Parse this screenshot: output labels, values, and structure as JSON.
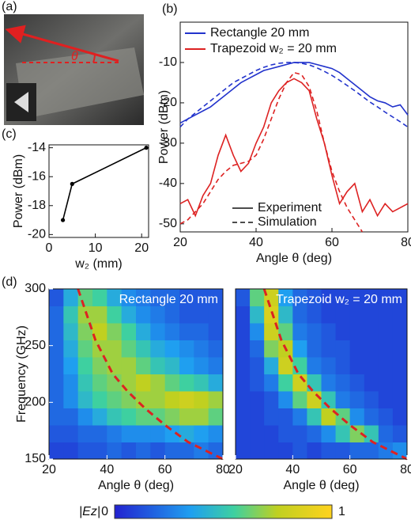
{
  "chart_data": [
    {
      "type": "image",
      "label": "(a)",
      "annotation": "θ"
    },
    {
      "type": "line",
      "label": "(b)",
      "xlabel": "Angle θ (deg)",
      "ylabel": "Power (dBm)",
      "xlim": [
        20,
        80
      ],
      "xticks": [
        20,
        40,
        60,
        80
      ],
      "ylim": [
        -52,
        0
      ],
      "yticks": [
        -10,
        -20,
        -30,
        -40,
        -50
      ],
      "x": [
        20,
        22,
        24,
        26,
        28,
        30,
        32,
        34,
        36,
        38,
        40,
        42,
        44,
        46,
        48,
        50,
        52,
        54,
        56,
        58,
        60,
        62,
        64,
        66,
        68,
        70,
        72,
        74,
        76,
        78,
        80
      ],
      "series": [
        {
          "name": "Rectangle 20 mm",
          "color": "#2233cc",
          "values": [
            -25,
            -24,
            -23,
            -22,
            -21,
            -19.5,
            -18,
            -16.5,
            -15,
            -14,
            -13,
            -12,
            -11.5,
            -11,
            -10.5,
            -10,
            -10,
            -10,
            -10.5,
            -11,
            -11.5,
            -12.5,
            -14,
            -15.5,
            -17,
            -18.5,
            -19.5,
            -20,
            -21,
            -20.5,
            -23
          ],
          "simulation": [
            -26,
            -24,
            -22.5,
            -21,
            -19.5,
            -18,
            -16.5,
            -15,
            -14,
            -13,
            -12,
            -11.2,
            -10.6,
            -10.2,
            -10,
            -10,
            -10.2,
            -10.6,
            -11.3,
            -12.2,
            -13.2,
            -14.4,
            -15.7,
            -17,
            -18.4,
            -19.8,
            -21,
            -22.3,
            -23.5,
            -24.7,
            -26
          ]
        },
        {
          "name": "Trapezoid w₂ = 20 mm",
          "color": "#dd2222",
          "values": [
            -45,
            -44,
            -48,
            -43,
            -40,
            -33,
            -28,
            -33,
            -37,
            -35,
            -30,
            -26,
            -20,
            -17,
            -15,
            -14,
            -15,
            -17,
            -24,
            -30,
            -38,
            -45,
            -42,
            -40,
            -47,
            -44,
            -48,
            -45,
            -47,
            -46,
            -45
          ],
          "simulation": [
            -50,
            -49,
            -47,
            -45,
            -42,
            -39,
            -37,
            -35.5,
            -35,
            -34.5,
            -33,
            -29,
            -24,
            -19,
            -15,
            -12.5,
            -13,
            -16,
            -22,
            -30,
            -37,
            -42,
            -46,
            -49,
            -52,
            null,
            null,
            null,
            null,
            null,
            null
          ]
        }
      ],
      "legend_styles": [
        "Experiment",
        "Simulation"
      ]
    },
    {
      "type": "line",
      "label": "(c)",
      "xlabel": "w₂ (mm)",
      "ylabel": "Power (dBm)",
      "color": "#000000",
      "xlim": [
        0,
        21.5
      ],
      "xticks": [
        0,
        10,
        20
      ],
      "ylim": [
        -20.2,
        -13.8
      ],
      "yticks": [
        -14,
        -16,
        -18,
        -20
      ],
      "x": [
        3,
        5,
        21
      ],
      "values": [
        -19,
        -16.5,
        -14
      ]
    },
    {
      "type": "heatmap",
      "label": "(d)",
      "title": "Rectangle 20 mm",
      "xlabel": "Angle θ (deg)",
      "ylabel": "Frequency (GHz)",
      "xlim": [
        20,
        80
      ],
      "xticks": [
        20,
        40,
        60,
        80
      ],
      "ylim": [
        150,
        300
      ],
      "yticks": [
        150,
        200,
        250,
        300
      ],
      "xbins": [
        20,
        25,
        30,
        35,
        40,
        45,
        50,
        55,
        60,
        65,
        70,
        75,
        80
      ],
      "ybins": [
        150,
        165,
        180,
        195,
        210,
        225,
        240,
        255,
        270,
        285,
        300
      ],
      "values": [
        [
          0.1,
          0.1,
          0.15,
          0.15,
          0.2,
          0.15,
          0.2,
          0.15,
          0.2,
          0.2,
          0.25,
          0.2
        ],
        [
          0.15,
          0.15,
          0.2,
          0.2,
          0.25,
          0.3,
          0.3,
          0.3,
          0.35,
          0.4,
          0.35,
          0.3
        ],
        [
          0.2,
          0.2,
          0.3,
          0.4,
          0.5,
          0.55,
          0.6,
          0.6,
          0.65,
          0.7,
          0.7,
          0.6
        ],
        [
          0.2,
          0.3,
          0.45,
          0.55,
          0.6,
          0.65,
          0.7,
          0.7,
          0.75,
          0.8,
          0.75,
          0.7
        ],
        [
          0.2,
          0.3,
          0.5,
          0.6,
          0.65,
          0.7,
          0.75,
          0.7,
          0.6,
          0.55,
          0.5,
          0.4
        ],
        [
          0.2,
          0.35,
          0.55,
          0.65,
          0.7,
          0.7,
          0.6,
          0.5,
          0.45,
          0.35,
          0.3,
          0.25
        ],
        [
          0.2,
          0.4,
          0.6,
          0.7,
          0.7,
          0.6,
          0.5,
          0.4,
          0.35,
          0.3,
          0.25,
          0.2
        ],
        [
          0.2,
          0.45,
          0.65,
          0.75,
          0.65,
          0.55,
          0.4,
          0.3,
          0.25,
          0.2,
          0.2,
          0.15
        ],
        [
          0.2,
          0.5,
          0.7,
          0.7,
          0.55,
          0.4,
          0.3,
          0.25,
          0.2,
          0.15,
          0.15,
          0.15
        ],
        [
          0.15,
          0.4,
          0.6,
          0.55,
          0.4,
          0.3,
          0.25,
          0.2,
          0.2,
          0.15,
          0.15,
          0.15
        ]
      ],
      "curve": {
        "color": "#dd2222",
        "x": [
          30,
          32,
          34,
          36,
          39,
          42,
          47,
          53,
          60,
          68,
          80
        ],
        "y": [
          300,
          285,
          270,
          255,
          240,
          225,
          210,
          195,
          180,
          165,
          150
        ]
      },
      "clabel": "|Ez|",
      "clim": [
        0,
        1
      ],
      "cticks": [
        0,
        1
      ]
    },
    {
      "type": "heatmap",
      "title": "Trapezoid w₂ = 20 mm",
      "xlabel": "Angle θ (deg)",
      "xlim": [
        20,
        80
      ],
      "xticks": [
        20,
        40,
        60,
        80
      ],
      "ylim": [
        150,
        300
      ],
      "xbins": [
        20,
        25,
        30,
        35,
        40,
        45,
        50,
        55,
        60,
        65,
        70,
        75,
        80
      ],
      "ybins": [
        150,
        165,
        180,
        195,
        210,
        225,
        240,
        255,
        270,
        285,
        300
      ],
      "values": [
        [
          0.1,
          0.1,
          0.1,
          0.1,
          0.15,
          0.1,
          0.15,
          0.15,
          0.2,
          0.2,
          0.25,
          0.3
        ],
        [
          0.1,
          0.1,
          0.1,
          0.15,
          0.15,
          0.2,
          0.3,
          0.5,
          0.65,
          0.5,
          0.2,
          0.15
        ],
        [
          0.1,
          0.1,
          0.15,
          0.15,
          0.25,
          0.5,
          0.75,
          0.6,
          0.3,
          0.2,
          0.15,
          0.1
        ],
        [
          0.1,
          0.1,
          0.15,
          0.3,
          0.6,
          0.8,
          0.5,
          0.25,
          0.2,
          0.15,
          0.1,
          0.1
        ],
        [
          0.1,
          0.15,
          0.25,
          0.55,
          0.8,
          0.5,
          0.25,
          0.2,
          0.15,
          0.1,
          0.1,
          0.1
        ],
        [
          0.1,
          0.15,
          0.4,
          0.8,
          0.55,
          0.25,
          0.2,
          0.15,
          0.1,
          0.1,
          0.1,
          0.1
        ],
        [
          0.1,
          0.2,
          0.65,
          0.75,
          0.35,
          0.2,
          0.15,
          0.15,
          0.1,
          0.1,
          0.1,
          0.1
        ],
        [
          0.1,
          0.3,
          0.8,
          0.6,
          0.25,
          0.2,
          0.15,
          0.1,
          0.1,
          0.1,
          0.1,
          0.1
        ],
        [
          0.1,
          0.45,
          0.85,
          0.45,
          0.2,
          0.15,
          0.1,
          0.1,
          0.1,
          0.1,
          0.1,
          0.1
        ],
        [
          0.15,
          0.6,
          0.8,
          0.35,
          0.2,
          0.15,
          0.1,
          0.1,
          0.1,
          0.1,
          0.1,
          0.1
        ]
      ],
      "curve": {
        "color": "#dd2222",
        "x": [
          30,
          32,
          34,
          36,
          39,
          42,
          47,
          53,
          60,
          68,
          80
        ],
        "y": [
          300,
          285,
          270,
          255,
          240,
          225,
          210,
          195,
          180,
          165,
          150
        ]
      }
    }
  ]
}
